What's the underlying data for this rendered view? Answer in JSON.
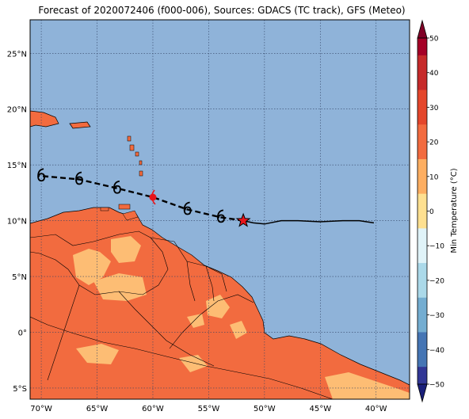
{
  "title": "Forecast of 2020072406 (f000-006), Sources: GDACS (TC track), GFS (Meteo)",
  "colors": {
    "ocean": "#8fb3d9",
    "land_warm": "#f26b3f",
    "land_mild": "#fdbd74",
    "grid": "#334466",
    "track": "#000000",
    "current_marker": "#e8151b",
    "red_dot": "#e8151b"
  },
  "map": {
    "lon_ticks": [
      "70°W",
      "65°W",
      "60°W",
      "55°W",
      "50°W",
      "45°W",
      "40°W"
    ],
    "lat_ticks": [
      "25°N",
      "20°N",
      "15°N",
      "10°N",
      "5°N",
      "0°",
      "5°S"
    ],
    "lon_range": [
      -71,
      -37
    ],
    "lat_range": [
      -6,
      28
    ]
  },
  "track": {
    "past_path": [
      [
        -40.2,
        9.8
      ],
      [
        -41.5,
        10.0
      ],
      [
        -43,
        10.0
      ],
      [
        -45,
        9.9
      ],
      [
        -47,
        10.0
      ],
      [
        -48.5,
        10.0
      ],
      [
        -50.0,
        9.7
      ],
      [
        -51.0,
        9.8
      ],
      [
        -51.9,
        10.0
      ]
    ],
    "forecast_path": [
      [
        -51.9,
        10.0
      ],
      [
        -53.9,
        10.3
      ],
      [
        -56.9,
        11.0
      ],
      [
        -60.0,
        12.1
      ],
      [
        -63.2,
        12.9
      ],
      [
        -66.6,
        13.7
      ],
      [
        -70.0,
        14.0
      ]
    ],
    "current_position": [
      -51.9,
      10.0
    ],
    "red_dot": [
      -60.0,
      12.1
    ],
    "storm_symbols": [
      [
        -53.9,
        10.3
      ],
      [
        -56.9,
        11.0
      ],
      [
        -63.2,
        12.9
      ],
      [
        -66.6,
        13.7
      ],
      [
        -70.0,
        14.0
      ]
    ]
  },
  "colorbar": {
    "label": "Min Temperature (°C)",
    "ticks": [
      "50",
      "40",
      "30",
      "20",
      "10",
      "0",
      "−10",
      "−20",
      "−30",
      "−40",
      "−50"
    ],
    "colors": [
      "#a50026",
      "#d73027",
      "#f46d43",
      "#fdae61",
      "#fee090",
      "#ffffbf",
      "#e0f3f8",
      "#abd9e9",
      "#74add1",
      "#4575b4",
      "#313695"
    ]
  }
}
